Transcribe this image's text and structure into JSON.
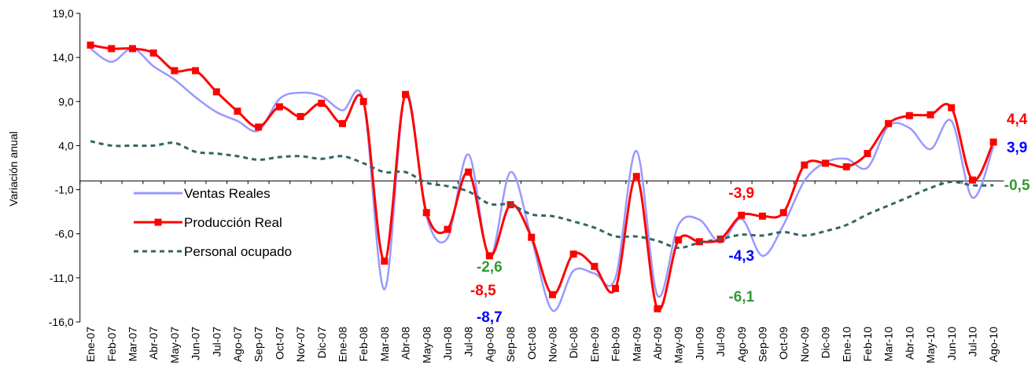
{
  "chart_data": {
    "type": "line",
    "y_label": "Variación anual",
    "categories": [
      "Ene-07",
      "Feb-07",
      "Mar-07",
      "Abr-07",
      "May-07",
      "Jun-07",
      "Jul-07",
      "Ago-07",
      "Sep-07",
      "Oct-07",
      "Nov-07",
      "Dic-07",
      "Ene-08",
      "Feb-08",
      "Mar-08",
      "Abr-08",
      "May-08",
      "Jun-08",
      "Jul-08",
      "Ago-08",
      "Sep-08",
      "Oct-08",
      "Nov-08",
      "Dic-08",
      "Ene-09",
      "Feb-09",
      "Mar-09",
      "Abr-09",
      "May-09",
      "Jun-09",
      "Jul-09",
      "Ago-09",
      "Sep-09",
      "Oct-09",
      "Nov-09",
      "Dic-09",
      "Ene-10",
      "Feb-10",
      "Mar-10",
      "Abr-10",
      "May-10",
      "Jun-10",
      "Jul-10",
      "Ago-10"
    ],
    "series": [
      {
        "name": "Ventas Reales",
        "color": "#9999ff",
        "label_color": "#0000ff",
        "values": [
          15.0,
          13.5,
          15.0,
          13.0,
          11.5,
          9.5,
          7.8,
          6.8,
          5.7,
          9.3,
          10.0,
          9.6,
          8.0,
          9.0,
          -12.3,
          10.0,
          -4.0,
          -6.5,
          3.0,
          -8.7,
          1.0,
          -6.5,
          -14.7,
          -10.2,
          -10.5,
          -11.0,
          3.4,
          -13.0,
          -5.0,
          -4.4,
          -7.0,
          -4.3,
          -8.5,
          -5.0,
          0.0,
          2.1,
          2.5,
          1.5,
          6.2,
          6.0,
          3.6,
          6.8,
          -1.9,
          3.9
        ],
        "value_labels": [
          null,
          null,
          null,
          null,
          null,
          null,
          null,
          null,
          null,
          null,
          null,
          null,
          null,
          null,
          null,
          null,
          null,
          null,
          null,
          "-8,7",
          null,
          null,
          null,
          null,
          null,
          null,
          null,
          null,
          null,
          null,
          null,
          "-4,3",
          null,
          null,
          null,
          null,
          null,
          null,
          null,
          null,
          null,
          null,
          null,
          "3,9"
        ]
      },
      {
        "name": "Producción Real",
        "color": "#ff0000",
        "label_color": "#ff0000",
        "values": [
          15.4,
          15.0,
          15.0,
          14.5,
          12.5,
          12.5,
          10.1,
          7.9,
          6.1,
          8.4,
          7.3,
          8.8,
          6.5,
          9.0,
          -9.1,
          9.8,
          -3.6,
          -5.5,
          1.0,
          -8.5,
          -2.7,
          -6.4,
          -12.9,
          -8.3,
          -9.7,
          -12.2,
          0.5,
          -14.5,
          -6.7,
          -6.9,
          -6.6,
          -3.9,
          -4.0,
          -3.6,
          1.8,
          2.0,
          1.6,
          3.1,
          6.5,
          7.4,
          7.5,
          8.3,
          0.1,
          4.4
        ],
        "value_labels": [
          null,
          null,
          null,
          null,
          null,
          null,
          null,
          null,
          null,
          null,
          null,
          null,
          null,
          null,
          null,
          null,
          null,
          null,
          null,
          "-8,5",
          null,
          null,
          null,
          null,
          null,
          null,
          null,
          null,
          null,
          null,
          null,
          "-3,9",
          null,
          null,
          null,
          null,
          null,
          null,
          null,
          null,
          null,
          null,
          null,
          "4,4"
        ]
      },
      {
        "name": "Personal ocupado",
        "color": "#336666",
        "label_color": "#339933",
        "dashed": true,
        "values": [
          4.5,
          4.0,
          4.0,
          4.0,
          4.3,
          3.3,
          3.1,
          2.8,
          2.4,
          2.7,
          2.8,
          2.5,
          2.8,
          2.0,
          1.0,
          1.0,
          -0.2,
          -0.6,
          -1.2,
          -2.6,
          -2.7,
          -3.8,
          -4.0,
          -4.6,
          -5.3,
          -6.3,
          -6.3,
          -6.8,
          -7.6,
          -7.0,
          -6.6,
          -6.1,
          -6.2,
          -5.8,
          -6.2,
          -5.7,
          -5.0,
          -3.8,
          -2.8,
          -1.8,
          -0.8,
          -0.1,
          -0.5,
          -0.5
        ],
        "value_labels": [
          null,
          null,
          null,
          null,
          null,
          null,
          null,
          null,
          null,
          null,
          null,
          null,
          null,
          null,
          null,
          null,
          null,
          null,
          null,
          "-2,6",
          null,
          null,
          null,
          null,
          null,
          null,
          null,
          null,
          null,
          null,
          null,
          "-6,1",
          null,
          null,
          null,
          null,
          null,
          null,
          null,
          null,
          null,
          null,
          null,
          "-0,5"
        ]
      }
    ],
    "ylim": [
      -16,
      19
    ],
    "yticks": [
      {
        "value": -16,
        "label": "-16,0"
      },
      {
        "value": -11,
        "label": "-11,0"
      },
      {
        "value": -6,
        "label": "-6,0"
      },
      {
        "value": -1,
        "label": "-1,0"
      },
      {
        "value": 4,
        "label": "4,0"
      },
      {
        "value": 9,
        "label": "9,0"
      },
      {
        "value": 14,
        "label": "14,0"
      },
      {
        "value": 19,
        "label": "19,0"
      }
    ],
    "markers": [
      "none",
      "square",
      "none"
    ]
  }
}
